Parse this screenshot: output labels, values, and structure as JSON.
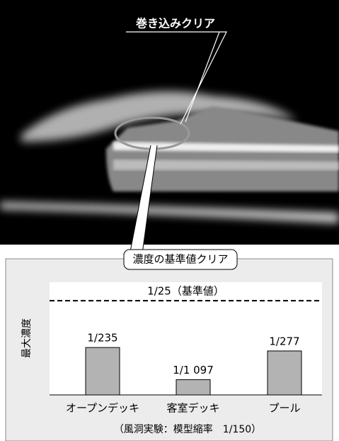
{
  "chart_data": {
    "type": "bar",
    "annotations": [
      "巻き込みクリア",
      "濃度の基準値クリア"
    ],
    "ylabel": "最大濃度",
    "categories": [
      "オープンデッキ",
      "客室デッキ",
      "プール"
    ],
    "values": [
      0.004255,
      0.0009116,
      0.00361
    ],
    "value_labels": [
      "1/235",
      "1/1 097",
      "1/277"
    ],
    "color": "#b3b3b3",
    "log_scale": true,
    "ylim": [
      0.00044,
      0.097
    ],
    "reference": {
      "value": 0.04,
      "label": "1/25（基準値）"
    },
    "note": "（風洞実験：模型縮率　1/150）"
  }
}
